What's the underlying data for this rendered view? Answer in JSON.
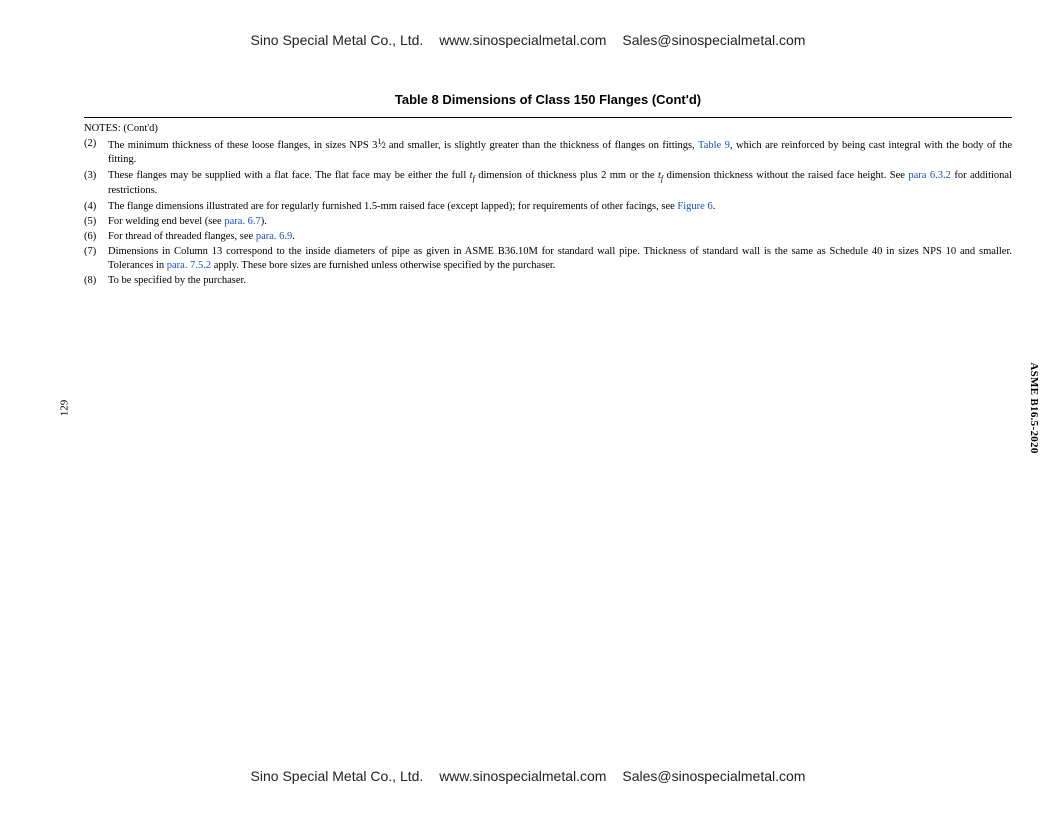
{
  "header": {
    "company": "Sino Special Metal Co., Ltd.",
    "url": "www.sinospecialmetal.com",
    "email": "Sales@sinospecialmetal.com"
  },
  "footer": {
    "company": "Sino Special Metal Co., Ltd.",
    "url": "www.sinospecialmetal.com",
    "email": "Sales@sinospecialmetal.com"
  },
  "table_title": "Table 8 Dimensions of Class 150 Flanges (Cont'd)",
  "notes_header": "NOTES: (Cont'd)",
  "page_number": "129",
  "side_label": "ASME B16.5-2020",
  "notes": [
    {
      "num": "(2)",
      "parts": [
        {
          "t": "text",
          "v": "The minimum thickness of these loose flanges, in sizes NPS 3"
        },
        {
          "t": "frac",
          "sup": "1",
          "sub": "2"
        },
        {
          "t": "text",
          "v": " and smaller, is slightly greater than the thickness of flanges on fittings, "
        },
        {
          "t": "link",
          "v": "Table 9"
        },
        {
          "t": "text",
          "v": ", which are reinforced by being cast integral with the body of the fitting."
        }
      ]
    },
    {
      "num": "(3)",
      "parts": [
        {
          "t": "text",
          "v": "These flanges may be supplied with a flat face. The flat face may be either the full "
        },
        {
          "t": "italic",
          "v": "t"
        },
        {
          "t": "sub",
          "v": "f"
        },
        {
          "t": "text",
          "v": " dimension of thickness plus 2 mm or the "
        },
        {
          "t": "italic",
          "v": "t"
        },
        {
          "t": "sub",
          "v": "f"
        },
        {
          "t": "text",
          "v": " dimension thickness without the raised face height. See "
        },
        {
          "t": "link",
          "v": "para 6.3.2"
        },
        {
          "t": "text",
          "v": " for additional restrictions."
        }
      ]
    },
    {
      "num": "(4)",
      "parts": [
        {
          "t": "text",
          "v": "The flange dimensions illustrated are for regularly furnished 1.5-mm raised face (except lapped); for requirements of other facings, see "
        },
        {
          "t": "link",
          "v": "Figure 6"
        },
        {
          "t": "text",
          "v": "."
        }
      ]
    },
    {
      "num": "(5)",
      "parts": [
        {
          "t": "text",
          "v": "For welding end bevel (see "
        },
        {
          "t": "link",
          "v": "para. 6.7"
        },
        {
          "t": "text",
          "v": ")."
        }
      ]
    },
    {
      "num": "(6)",
      "parts": [
        {
          "t": "text",
          "v": "For thread of threaded flanges, see "
        },
        {
          "t": "link",
          "v": "para. 6.9"
        },
        {
          "t": "text",
          "v": "."
        }
      ]
    },
    {
      "num": "(7)",
      "parts": [
        {
          "t": "text",
          "v": "Dimensions in Column 13 correspond to the inside diameters of pipe as given in ASME B36.10M for standard wall pipe. Thickness of standard wall is the same as Schedule 40 in sizes NPS 10 and smaller. Tolerances in "
        },
        {
          "t": "link",
          "v": "para. 7.5.2"
        },
        {
          "t": "text",
          "v": " apply. These bore sizes are furnished unless otherwise specified by the purchaser."
        }
      ]
    },
    {
      "num": "(8)",
      "parts": [
        {
          "t": "text",
          "v": "To be specified by the purchaser."
        }
      ]
    }
  ],
  "link_color": "#1a4fc7"
}
